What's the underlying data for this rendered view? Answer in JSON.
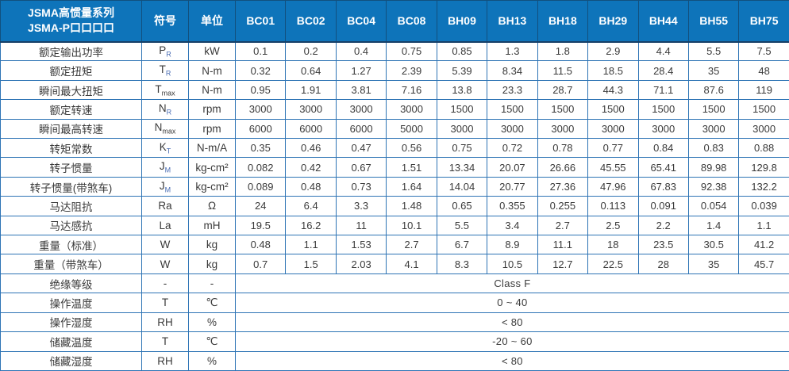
{
  "header": {
    "title_line1": "JSMA高惯量系列",
    "title_line2": "JSMA-P口口口口",
    "symbol_col": "符号",
    "unit_col": "单位",
    "models": [
      "BC01",
      "BC02",
      "BC04",
      "BC08",
      "BH09",
      "BH13",
      "BH18",
      "BH29",
      "BH44",
      "BH55",
      "BH75"
    ]
  },
  "rows": [
    {
      "label": "额定输出功率",
      "symbol_base": "P",
      "symbol_sub": "R",
      "sub_blue": true,
      "unit": "kW",
      "values": [
        "0.1",
        "0.2",
        "0.4",
        "0.75",
        "0.85",
        "1.3",
        "1.8",
        "2.9",
        "4.4",
        "5.5",
        "7.5"
      ]
    },
    {
      "label": "额定扭矩",
      "symbol_base": "T",
      "symbol_sub": "R",
      "sub_blue": true,
      "unit": "N-m",
      "values": [
        "0.32",
        "0.64",
        "1.27",
        "2.39",
        "5.39",
        "8.34",
        "11.5",
        "18.5",
        "28.4",
        "35",
        "48"
      ]
    },
    {
      "label": "瞬间最大扭矩",
      "symbol_base": "T",
      "symbol_sub": "max",
      "sub_blue": false,
      "unit": "N-m",
      "values": [
        "0.95",
        "1.91",
        "3.81",
        "7.16",
        "13.8",
        "23.3",
        "28.7",
        "44.3",
        "71.1",
        "87.6",
        "119"
      ]
    },
    {
      "label": "额定转速",
      "symbol_base": "N",
      "symbol_sub": "R",
      "sub_blue": true,
      "unit": "rpm",
      "values": [
        "3000",
        "3000",
        "3000",
        "3000",
        "1500",
        "1500",
        "1500",
        "1500",
        "1500",
        "1500",
        "1500"
      ]
    },
    {
      "label": "瞬间最高转速",
      "symbol_base": "N",
      "symbol_sub": "max",
      "sub_blue": false,
      "unit": "rpm",
      "values": [
        "6000",
        "6000",
        "6000",
        "5000",
        "3000",
        "3000",
        "3000",
        "3000",
        "3000",
        "3000",
        "3000"
      ]
    },
    {
      "label": "转矩常数",
      "symbol_base": "K",
      "symbol_sub": "T",
      "sub_blue": true,
      "unit": "N-m/A",
      "values": [
        "0.35",
        "0.46",
        "0.47",
        "0.56",
        "0.75",
        "0.72",
        "0.78",
        "0.77",
        "0.84",
        "0.83",
        "0.88"
      ]
    },
    {
      "label": "转子惯量",
      "symbol_base": "J",
      "symbol_sub": "M",
      "sub_blue": true,
      "unit": "kg-cm²",
      "values": [
        "0.082",
        "0.42",
        "0.67",
        "1.51",
        "13.34",
        "20.07",
        "26.66",
        "45.55",
        "65.41",
        "89.98",
        "129.8"
      ]
    },
    {
      "label": "转子惯量(带煞车)",
      "symbol_base": "J",
      "symbol_sub": "M",
      "sub_blue": true,
      "unit": "kg-cm²",
      "values": [
        "0.089",
        "0.48",
        "0.73",
        "1.64",
        "14.04",
        "20.77",
        "27.36",
        "47.96",
        "67.83",
        "92.38",
        "132.2"
      ]
    },
    {
      "label": "马达阻抗",
      "symbol_base": "Ra",
      "symbol_sub": "",
      "sub_blue": false,
      "unit": "Ω",
      "values": [
        "24",
        "6.4",
        "3.3",
        "1.48",
        "0.65",
        "0.355",
        "0.255",
        "0.113",
        "0.091",
        "0.054",
        "0.039"
      ]
    },
    {
      "label": "马达感抗",
      "symbol_base": "La",
      "symbol_sub": "",
      "sub_blue": false,
      "unit": "mH",
      "values": [
        "19.5",
        "16.2",
        "11",
        "10.1",
        "5.5",
        "3.4",
        "2.7",
        "2.5",
        "2.2",
        "1.4",
        "1.1"
      ]
    },
    {
      "label": "重量（标准）",
      "symbol_base": "W",
      "symbol_sub": "",
      "sub_blue": false,
      "unit": "kg",
      "values": [
        "0.48",
        "1.1",
        "1.53",
        "2.7",
        "6.7",
        "8.9",
        "11.1",
        "18",
        "23.5",
        "30.5",
        "41.2"
      ]
    },
    {
      "label": "重量（带煞车）",
      "symbol_base": "W",
      "symbol_sub": "",
      "sub_blue": false,
      "unit": "kg",
      "values": [
        "0.7",
        "1.5",
        "2.03",
        "4.1",
        "8.3",
        "10.5",
        "12.7",
        "22.5",
        "28",
        "35",
        "45.7"
      ]
    }
  ],
  "merged_rows": [
    {
      "label": "绝缘等级",
      "symbol_base": "-",
      "symbol_sub": "",
      "sub_blue": false,
      "unit": "-",
      "value": "Class F"
    },
    {
      "label": "操作温度",
      "symbol_base": "T",
      "symbol_sub": "",
      "sub_blue": false,
      "unit": "℃",
      "value": "0 ~ 40"
    },
    {
      "label": "操作湿度",
      "symbol_base": "RH",
      "symbol_sub": "",
      "sub_blue": false,
      "unit": "%",
      "value": "< 80"
    },
    {
      "label": "储藏温度",
      "symbol_base": "T",
      "symbol_sub": "",
      "sub_blue": false,
      "unit": "℃",
      "value": "-20 ~ 60"
    },
    {
      "label": "储藏湿度",
      "symbol_base": "RH",
      "symbol_sub": "",
      "sub_blue": false,
      "unit": "%",
      "value": "< 80"
    }
  ],
  "colors": {
    "header_bg": "#0e74ba",
    "header_text": "#ffffff",
    "header_divider": "#12507e",
    "grid_border": "#2e74b5",
    "body_text": "#3a3a3a",
    "subscript_blue": "#4a6db4",
    "cell_bg": "#ffffff"
  }
}
